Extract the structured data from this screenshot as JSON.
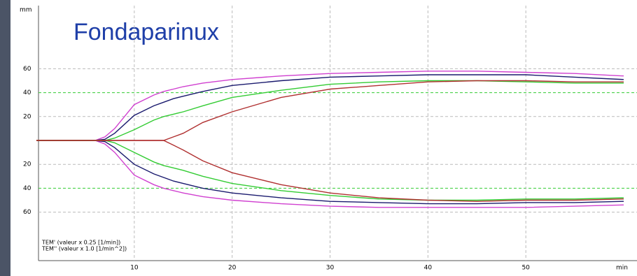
{
  "chart_data": {
    "type": "line",
    "title": "Fondaparinux",
    "y_unit": "mm",
    "x_unit": "min",
    "notes": [
      "TEM' (valeur x 0.25  [1/min])",
      "TEM'' (valeur x 1.0  [1/min^2])"
    ],
    "x": [
      0,
      6,
      7,
      8,
      10,
      12,
      13,
      14,
      15,
      17,
      20,
      25,
      30,
      35,
      40,
      45,
      50,
      55,
      60
    ],
    "xlim": [
      0,
      61
    ],
    "xticks": [
      10,
      20,
      30,
      40,
      50
    ],
    "ylim": [
      -100,
      100
    ],
    "yticks": [
      60,
      40,
      20,
      {
        "value": -20,
        "label": "20"
      },
      {
        "value": -40,
        "label": "40"
      },
      {
        "value": -60,
        "label": "60"
      }
    ],
    "reference_lines": [
      40,
      -40
    ],
    "reference_color": "#33cc33",
    "grid": true,
    "series": [
      {
        "color": "#d040d0",
        "values": [
          0,
          0,
          3,
          10,
          30,
          38,
          41,
          43,
          45,
          48,
          51,
          54,
          56,
          57,
          58,
          58,
          57,
          56,
          54
        ]
      },
      {
        "color": "#d040d0",
        "values": [
          0,
          0,
          -3,
          -10,
          -29,
          -37,
          -40,
          -42,
          -44,
          -47,
          -50,
          -53,
          -55,
          -56,
          -56,
          -56,
          -56,
          -55,
          -54
        ]
      },
      {
        "color": "#1a1a6e",
        "values": [
          0,
          0,
          1,
          6,
          21,
          29,
          32,
          35,
          37,
          41,
          46,
          50,
          53,
          54,
          55,
          55,
          55,
          53,
          51
        ]
      },
      {
        "color": "#1a1a6e",
        "values": [
          0,
          0,
          -1,
          -6,
          -20,
          -28,
          -31,
          -34,
          -36,
          -40,
          -44,
          -48,
          -51,
          -52,
          -53,
          -53,
          -52,
          -52,
          -51
        ]
      },
      {
        "color": "#33cc33",
        "values": [
          0,
          0,
          0,
          2,
          9,
          17,
          20,
          22,
          24,
          29,
          36,
          42,
          47,
          49,
          50,
          50,
          49,
          48,
          48
        ]
      },
      {
        "color": "#33cc33",
        "values": [
          0,
          0,
          0,
          -2,
          -10,
          -18,
          -21,
          -23,
          -25,
          -30,
          -36,
          -42,
          -46,
          -49,
          -50,
          -50,
          -49,
          -49,
          -48
        ]
      },
      {
        "color": "#b03030",
        "values": [
          0,
          0,
          0,
          0,
          0,
          0,
          0,
          3,
          6,
          15,
          24,
          36,
          43,
          46,
          49,
          50,
          50,
          49,
          49
        ]
      },
      {
        "color": "#b03030",
        "values": [
          0,
          0,
          0,
          0,
          0,
          0,
          0,
          -4,
          -8,
          -17,
          -27,
          -37,
          -44,
          -48,
          -50,
          -51,
          -50,
          -50,
          -49
        ]
      }
    ]
  }
}
